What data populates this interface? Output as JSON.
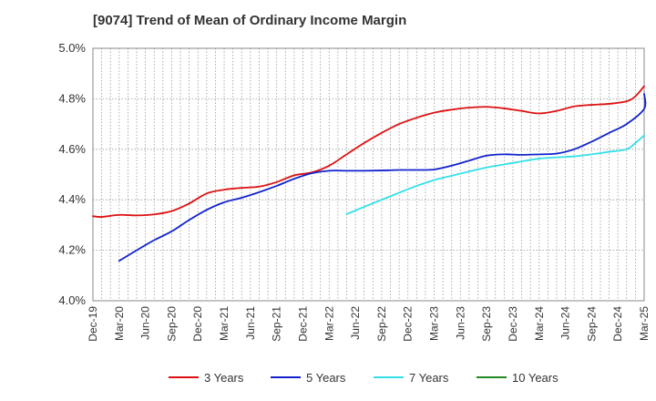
{
  "chart_data": {
    "type": "line",
    "title": "[9074]  Trend of Mean of Ordinary Income Margin",
    "xlabel": "",
    "ylabel": "",
    "grid": true,
    "legend_position": "bottom",
    "ylim": [
      4.0,
      5.0
    ],
    "y_ticks": [
      "5.0%",
      "4.8%",
      "4.6%",
      "4.4%",
      "4.2%",
      "4.0%"
    ],
    "y_tick_values": [
      5.0,
      4.8,
      4.6,
      4.4,
      4.2,
      4.0
    ],
    "x_ticks": [
      "Dec-19",
      "Mar-20",
      "Jun-20",
      "Sep-20",
      "Dec-20",
      "Mar-21",
      "Jun-21",
      "Sep-21",
      "Dec-21",
      "Mar-22",
      "Jun-22",
      "Sep-22",
      "Dec-22",
      "Mar-23",
      "Jun-23",
      "Sep-23",
      "Dec-23",
      "Mar-24",
      "Jun-24",
      "Sep-24",
      "Dec-24",
      "Mar-25"
    ],
    "x_months": [
      "2019-12",
      "2020-01",
      "2020-02",
      "2020-03",
      "2020-04",
      "2020-05",
      "2020-06",
      "2020-07",
      "2020-08",
      "2020-09",
      "2020-10",
      "2020-11",
      "2020-12",
      "2021-01",
      "2021-02",
      "2021-03",
      "2021-04",
      "2021-05",
      "2021-06",
      "2021-07",
      "2021-08",
      "2021-09",
      "2021-10",
      "2021-11",
      "2021-12",
      "2022-01",
      "2022-02",
      "2022-03",
      "2022-04",
      "2022-05",
      "2022-06",
      "2022-07",
      "2022-08",
      "2022-09",
      "2022-10",
      "2022-11",
      "2022-12",
      "2023-01",
      "2023-02",
      "2023-03",
      "2023-04",
      "2023-05",
      "2023-06",
      "2023-07",
      "2023-08",
      "2023-09",
      "2023-10",
      "2023-11",
      "2023-12",
      "2024-01",
      "2024-02",
      "2024-03",
      "2024-04",
      "2024-05",
      "2024-06",
      "2024-07",
      "2024-08",
      "2024-09",
      "2024-10",
      "2024-11",
      "2024-12",
      "2025-01",
      "2025-02",
      "2025-03"
    ],
    "series": [
      {
        "name": "3 Years",
        "color": "#dd1111",
        "points": [
          [
            "2019-12",
            4.335
          ],
          [
            "2020-01",
            4.332
          ],
          [
            "2020-03",
            4.34
          ],
          [
            "2020-05",
            4.338
          ],
          [
            "2020-07",
            4.342
          ],
          [
            "2020-09",
            4.355
          ],
          [
            "2020-11",
            4.385
          ],
          [
            "2021-01",
            4.425
          ],
          [
            "2021-03",
            4.44
          ],
          [
            "2021-05",
            4.447
          ],
          [
            "2021-07",
            4.452
          ],
          [
            "2021-09",
            4.47
          ],
          [
            "2021-11",
            4.497
          ],
          [
            "2022-01",
            4.508
          ],
          [
            "2022-03",
            4.535
          ],
          [
            "2022-05",
            4.58
          ],
          [
            "2022-07",
            4.625
          ],
          [
            "2022-09",
            4.665
          ],
          [
            "2022-11",
            4.7
          ],
          [
            "2023-01",
            4.725
          ],
          [
            "2023-03",
            4.745
          ],
          [
            "2023-05",
            4.757
          ],
          [
            "2023-07",
            4.765
          ],
          [
            "2023-09",
            4.768
          ],
          [
            "2023-11",
            4.762
          ],
          [
            "2024-01",
            4.752
          ],
          [
            "2024-03",
            4.742
          ],
          [
            "2024-05",
            4.752
          ],
          [
            "2024-07",
            4.77
          ],
          [
            "2024-09",
            4.776
          ],
          [
            "2024-11",
            4.78
          ],
          [
            "2025-01",
            4.79
          ],
          [
            "2025-02",
            4.81
          ],
          [
            "2025-03",
            4.85
          ]
        ]
      },
      {
        "name": "5 Years",
        "color": "#1122cc",
        "points": [
          [
            "2020-03",
            4.158
          ],
          [
            "2020-05",
            4.2
          ],
          [
            "2020-07",
            4.24
          ],
          [
            "2020-09",
            4.275
          ],
          [
            "2020-11",
            4.32
          ],
          [
            "2021-01",
            4.36
          ],
          [
            "2021-03",
            4.39
          ],
          [
            "2021-05",
            4.408
          ],
          [
            "2021-07",
            4.43
          ],
          [
            "2021-09",
            4.455
          ],
          [
            "2021-11",
            4.483
          ],
          [
            "2022-01",
            4.505
          ],
          [
            "2022-03",
            4.515
          ],
          [
            "2022-05",
            4.515
          ],
          [
            "2022-07",
            4.515
          ],
          [
            "2022-09",
            4.516
          ],
          [
            "2022-11",
            4.518
          ],
          [
            "2023-01",
            4.518
          ],
          [
            "2023-03",
            4.52
          ],
          [
            "2023-05",
            4.535
          ],
          [
            "2023-07",
            4.555
          ],
          [
            "2023-09",
            4.575
          ],
          [
            "2023-11",
            4.58
          ],
          [
            "2024-01",
            4.578
          ],
          [
            "2024-03",
            4.58
          ],
          [
            "2024-05",
            4.583
          ],
          [
            "2024-07",
            4.6
          ],
          [
            "2024-09",
            4.63
          ],
          [
            "2024-11",
            4.665
          ],
          [
            "2025-01",
            4.7
          ],
          [
            "2025-03",
            4.76
          ],
          [
            "2025-03",
            4.82
          ]
        ]
      },
      {
        "name": "7 Years",
        "color": "#33e0e8",
        "points": [
          [
            "2022-05",
            4.343
          ],
          [
            "2022-07",
            4.372
          ],
          [
            "2022-09",
            4.4
          ],
          [
            "2022-11",
            4.428
          ],
          [
            "2023-01",
            4.455
          ],
          [
            "2023-03",
            4.478
          ],
          [
            "2023-05",
            4.495
          ],
          [
            "2023-07",
            4.512
          ],
          [
            "2023-09",
            4.528
          ],
          [
            "2023-11",
            4.54
          ],
          [
            "2024-01",
            4.552
          ],
          [
            "2024-03",
            4.563
          ],
          [
            "2024-05",
            4.568
          ],
          [
            "2024-07",
            4.572
          ],
          [
            "2024-09",
            4.58
          ],
          [
            "2024-11",
            4.59
          ],
          [
            "2025-01",
            4.6
          ],
          [
            "2025-02",
            4.625
          ],
          [
            "2025-03",
            4.655
          ]
        ]
      },
      {
        "name": "10 Years",
        "color": "#228822",
        "points": []
      }
    ]
  }
}
